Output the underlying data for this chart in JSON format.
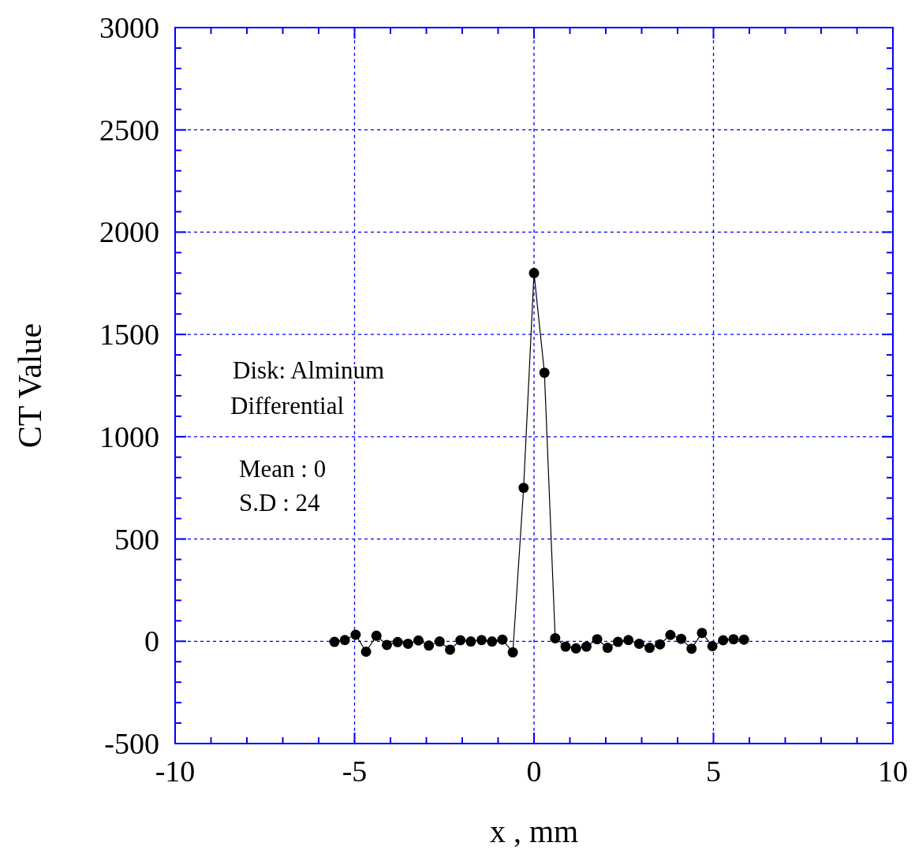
{
  "chart_data": {
    "type": "line",
    "xlabel": "x ,  mm",
    "ylabel": "CT Value",
    "annotations": [
      "Disk: Alminum",
      "Differential",
      "Mean : 0",
      "S.D   : 24"
    ],
    "series": [
      {
        "color": "#000000",
        "marker": "circle",
        "x": [
          -5.56,
          -5.27,
          -4.97,
          -4.68,
          -4.39,
          -4.1,
          -3.8,
          -3.51,
          -3.22,
          -2.93,
          -2.63,
          -2.34,
          -2.05,
          -1.76,
          -1.46,
          -1.17,
          -0.88,
          -0.59,
          -0.29,
          0,
          0.29,
          0.59,
          0.88,
          1.17,
          1.46,
          1.76,
          2.05,
          2.34,
          2.63,
          2.93,
          3.22,
          3.51,
          3.8,
          4.1,
          4.39,
          4.68,
          4.97,
          5.27,
          5.56,
          5.85
        ],
        "values": [
          -3,
          6,
          32,
          -51,
          27,
          -18,
          -4,
          -12,
          4,
          -21,
          -1,
          -41,
          5,
          -1,
          6,
          -1,
          8,
          -54,
          750,
          1800,
          1313,
          15,
          -26,
          -35,
          -26,
          10,
          -32,
          -3,
          6,
          -12,
          -32,
          -15,
          31,
          12,
          -36,
          41,
          -24,
          5,
          10,
          8
        ]
      }
    ],
    "xlim": [
      -10,
      10
    ],
    "xticks": [
      -10,
      {
        "value": -9,
        "label": null
      },
      {
        "value": -8,
        "label": null
      },
      {
        "value": -7,
        "label": null
      },
      {
        "value": -6,
        "label": null
      },
      -5,
      {
        "value": -4,
        "label": null
      },
      {
        "value": -3,
        "label": null
      },
      {
        "value": -2,
        "label": null
      },
      {
        "value": -1,
        "label": null
      },
      0,
      {
        "value": 1,
        "label": null
      },
      {
        "value": 2,
        "label": null
      },
      {
        "value": 3,
        "label": null
      },
      {
        "value": 4,
        "label": null
      },
      5,
      {
        "value": 6,
        "label": null
      },
      {
        "value": 7,
        "label": null
      },
      {
        "value": 8,
        "label": null
      },
      {
        "value": 9,
        "label": null
      },
      10
    ],
    "ylim": [
      -500,
      3000
    ],
    "yticks": [
      -500,
      {
        "value": -400,
        "label": null
      },
      {
        "value": -300,
        "label": null
      },
      {
        "value": -200,
        "label": null
      },
      {
        "value": -100,
        "label": null
      },
      0,
      {
        "value": 100,
        "label": null
      },
      {
        "value": 200,
        "label": null
      },
      {
        "value": 300,
        "label": null
      },
      {
        "value": 400,
        "label": null
      },
      500,
      {
        "value": 600,
        "label": null
      },
      {
        "value": 700,
        "label": null
      },
      {
        "value": 800,
        "label": null
      },
      {
        "value": 900,
        "label": null
      },
      1000,
      {
        "value": 1100,
        "label": null
      },
      {
        "value": 1200,
        "label": null
      },
      {
        "value": 1300,
        "label": null
      },
      {
        "value": 1400,
        "label": null
      },
      1500,
      {
        "value": 1600,
        "label": null
      },
      {
        "value": 1700,
        "label": null
      },
      {
        "value": 1800,
        "label": null
      },
      {
        "value": 1900,
        "label": null
      },
      2000,
      {
        "value": 2100,
        "label": null
      },
      {
        "value": 2200,
        "label": null
      },
      {
        "value": 2300,
        "label": null
      },
      {
        "value": 2400,
        "label": null
      },
      2500,
      {
        "value": 2600,
        "label": null
      },
      {
        "value": 2700,
        "label": null
      },
      {
        "value": 2800,
        "label": null
      },
      {
        "value": 2900,
        "label": null
      },
      3000
    ],
    "grid": true,
    "line_style": "solid"
  }
}
